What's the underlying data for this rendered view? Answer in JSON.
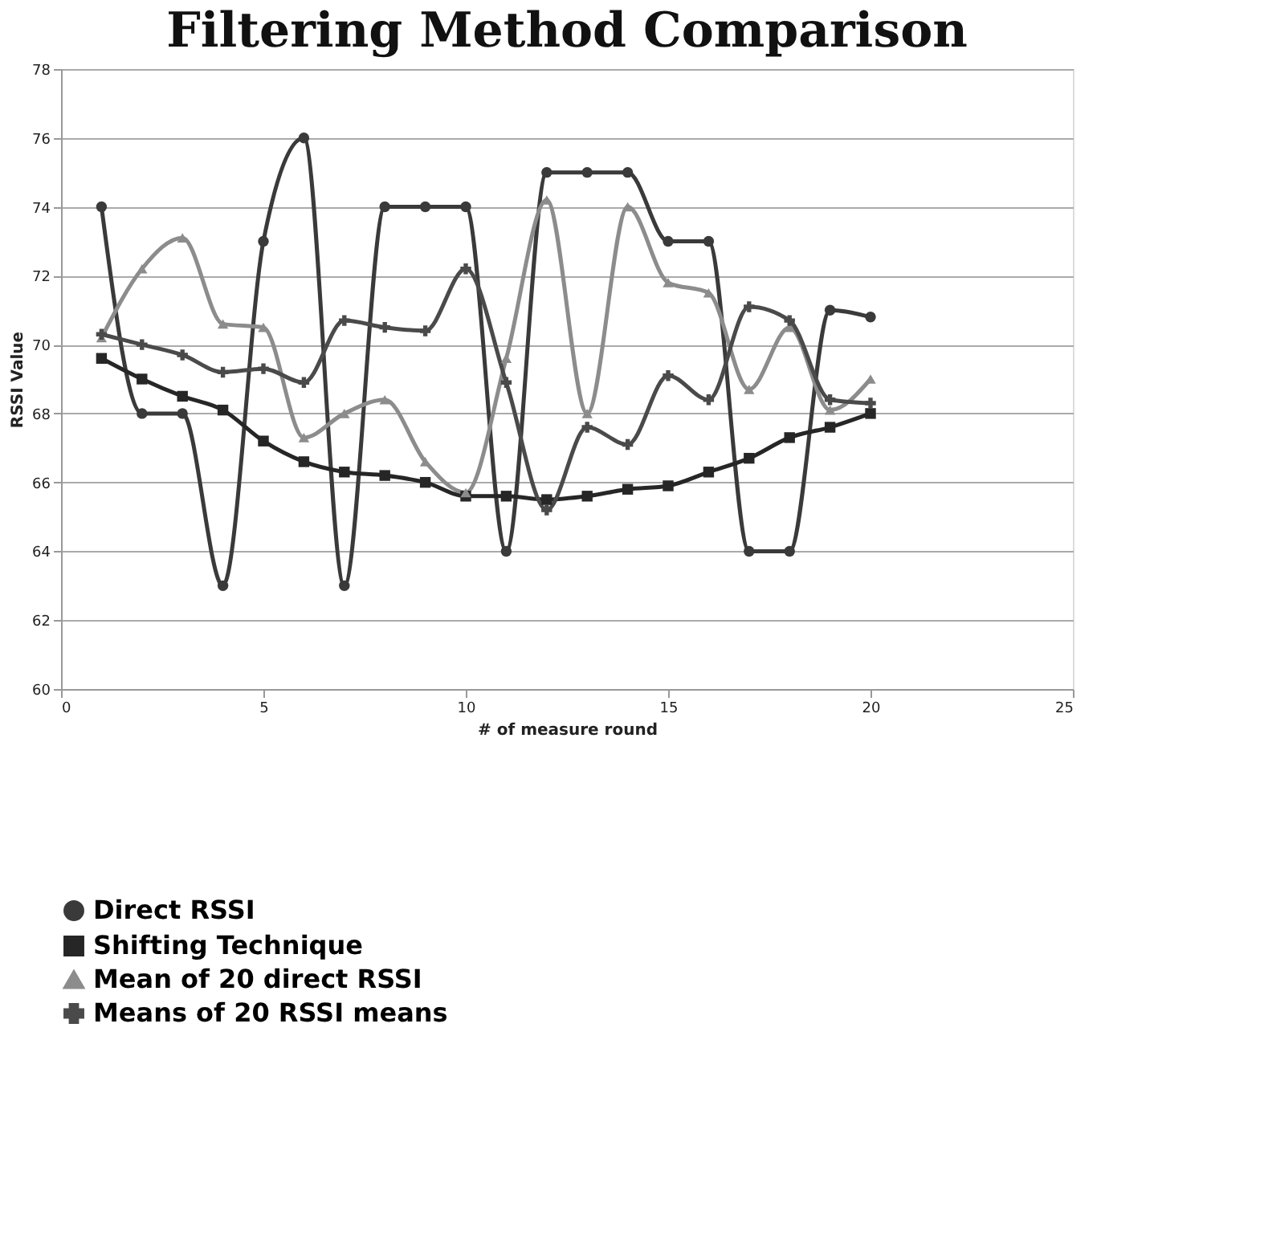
{
  "chart_data": {
    "type": "line",
    "title": "Filtering Method Comparison",
    "xlabel": "# of measure round",
    "ylabel": "RSSI Value",
    "x": [
      1,
      2,
      3,
      4,
      5,
      6,
      7,
      8,
      9,
      10,
      11,
      12,
      13,
      14,
      15,
      16,
      17,
      18,
      19,
      20
    ],
    "series": [
      {
        "name": "Direct RSSI",
        "color": "#3a3a3a",
        "marker": "circle",
        "values": [
          74,
          68,
          68,
          63,
          73,
          76,
          63,
          74,
          74,
          74,
          64,
          75,
          75,
          75,
          73,
          73,
          64,
          64,
          71,
          70.8
        ]
      },
      {
        "name": "Shifting Technique",
        "color": "#262626",
        "marker": "square",
        "values": [
          69.6,
          69,
          68.5,
          68.1,
          67.2,
          66.6,
          66.3,
          66.2,
          66,
          65.6,
          65.6,
          65.5,
          65.6,
          65.8,
          65.9,
          66.3,
          66.7,
          67.3,
          67.6,
          68
        ]
      },
      {
        "name": "Mean of 20 direct RSSI",
        "color": "#8c8c8c",
        "marker": "triangle",
        "values": [
          70.2,
          72.2,
          73.1,
          70.6,
          70.5,
          67.3,
          68,
          68.4,
          66.6,
          65.7,
          69.6,
          74.2,
          68,
          74,
          71.8,
          71.5,
          68.7,
          70.5,
          68.1,
          69
        ]
      },
      {
        "name": "Means of 20 RSSI means",
        "color": "#4a4a4a",
        "marker": "cross",
        "values": [
          70.3,
          70,
          69.7,
          69.2,
          69.3,
          68.9,
          70.7,
          70.5,
          70.4,
          72.2,
          68.9,
          65.2,
          67.6,
          67.1,
          69.1,
          68.4,
          71.1,
          70.7,
          68.4,
          68.3
        ]
      }
    ],
    "xlim": [
      0,
      25
    ],
    "xticks": [
      0,
      5,
      10,
      15,
      20,
      25
    ],
    "ylim": [
      60,
      78
    ],
    "yticks": [
      60,
      62,
      64,
      66,
      68,
      70,
      72,
      74,
      76,
      78
    ],
    "grid": "y",
    "legend": "bottom"
  }
}
